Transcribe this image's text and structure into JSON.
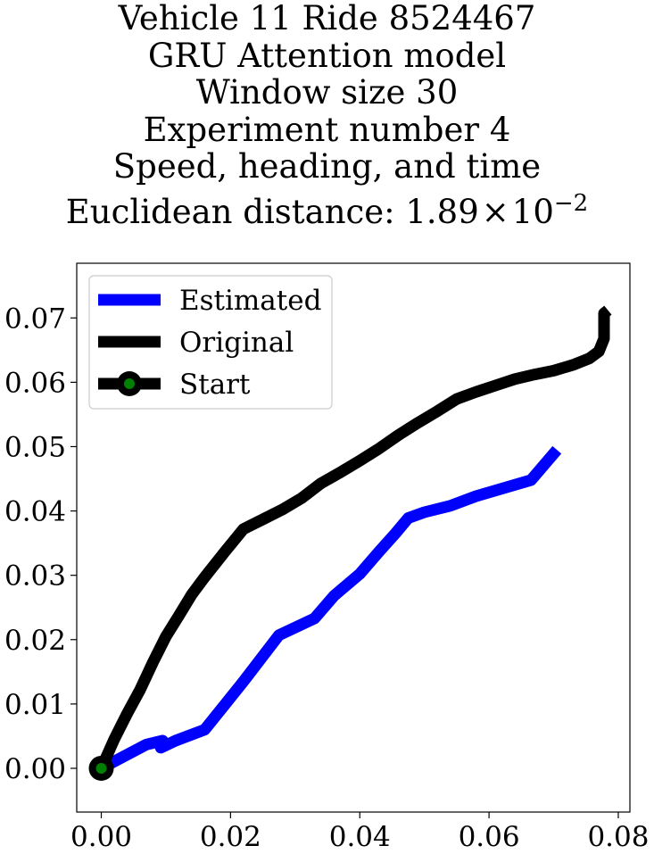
{
  "title_lines": [
    "Vehicle 11 Ride 8524467",
    "GRU Attention model",
    "Window size 30",
    "Experiment number 4",
    "Speed, heading, and time"
  ],
  "distance_label": {
    "prefix": "Euclidean distance: ",
    "mantissa": "1.89",
    "times": "×",
    "base": "10",
    "exponent": "−2"
  },
  "chart_data": {
    "type": "line",
    "title": "Vehicle 11 Ride 8524467 GRU Attention model Window size 30 Experiment number 4 Speed, heading, and time Euclidean distance: 1.89×10^-2",
    "xlabel": "",
    "ylabel": "",
    "xlim": [
      -0.0038,
      0.0818
    ],
    "ylim": [
      -0.0068,
      0.0785
    ],
    "xticks": [
      "0.00",
      "0.02",
      "0.04",
      "0.06",
      "0.08"
    ],
    "yticks": [
      "0.00",
      "0.01",
      "0.02",
      "0.03",
      "0.04",
      "0.05",
      "0.06",
      "0.07"
    ],
    "xtick_values": [
      0.0,
      0.02,
      0.04,
      0.06,
      0.08
    ],
    "ytick_values": [
      0.0,
      0.01,
      0.02,
      0.03,
      0.04,
      0.05,
      0.06,
      0.07
    ],
    "grid": false,
    "legend_placement": "top-left",
    "series": [
      {
        "name": "Estimated",
        "color": "#0000ff",
        "x": [
          0.0,
          0.007,
          0.0095,
          0.0092,
          0.0115,
          0.016,
          0.022,
          0.0275,
          0.033,
          0.036,
          0.04,
          0.043,
          0.0455,
          0.0475,
          0.05,
          0.054,
          0.058,
          0.0665,
          0.0705
        ],
        "y": [
          0.0,
          0.0037,
          0.0043,
          0.0032,
          0.0043,
          0.006,
          0.0135,
          0.0207,
          0.0233,
          0.0268,
          0.0302,
          0.0337,
          0.0365,
          0.0389,
          0.0398,
          0.0408,
          0.0423,
          0.0448,
          0.0495
        ]
      },
      {
        "name": "Original",
        "color": "#000000",
        "x": [
          0.0,
          0.002,
          0.004,
          0.006,
          0.008,
          0.01,
          0.012,
          0.014,
          0.016,
          0.019,
          0.022,
          0.025,
          0.028,
          0.031,
          0.034,
          0.037,
          0.04,
          0.043,
          0.046,
          0.049,
          0.052,
          0.055,
          0.058,
          0.061,
          0.064,
          0.067,
          0.07,
          0.073,
          0.0755,
          0.077,
          0.0778,
          0.0778,
          0.0778,
          0.0784
        ],
        "y": [
          0.0,
          0.0045,
          0.0085,
          0.0122,
          0.0165,
          0.0205,
          0.0237,
          0.027,
          0.0297,
          0.0335,
          0.0372,
          0.0387,
          0.0402,
          0.042,
          0.0443,
          0.046,
          0.0478,
          0.0497,
          0.0518,
          0.0537,
          0.0555,
          0.0574,
          0.0585,
          0.0595,
          0.0605,
          0.0612,
          0.0618,
          0.0627,
          0.0637,
          0.0648,
          0.0668,
          0.0695,
          0.0707,
          0.0712
        ]
      }
    ],
    "start_point": {
      "name": "Start",
      "x": 0.0,
      "y": 0.0,
      "color": "#000000",
      "inner_color": "#008000"
    }
  }
}
